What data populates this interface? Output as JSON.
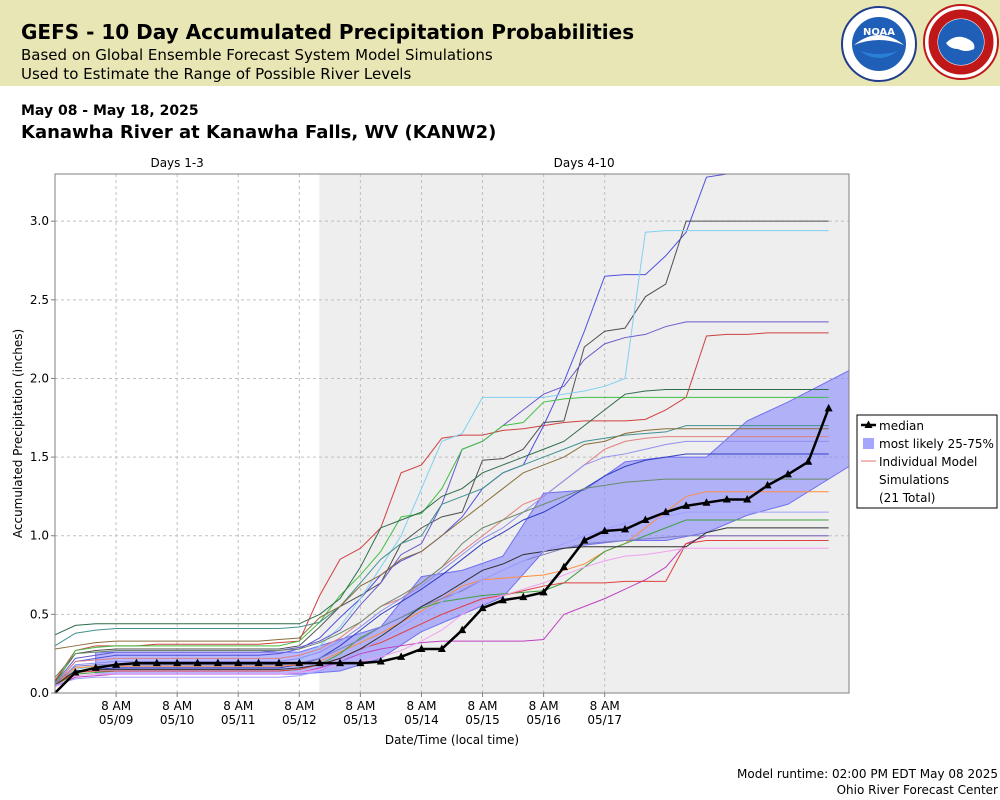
{
  "header": {
    "title": "GEFS - 10 Day Accumulated Precipitation Probabilities",
    "subtitle1": "Based on Global Ensemble Forecast System Model Simulations",
    "subtitle2": "Used to Estimate the Range of Possible River Levels",
    "noaa_logo_text": "NOAA",
    "nws_logo_text": "NATIONAL WEATHER SERVICE"
  },
  "date_range": "May 08 - May 18, 2025",
  "location": "Kanawha River at Kanawha Falls, WV (KANW2)",
  "footer": {
    "runtime": "Model runtime: 02:00 PM EDT May 08 2025",
    "center": "Ohio River Forecast Center"
  },
  "colors": {
    "banner": "#e8e6b4",
    "median": "#000000",
    "band": "#8080ff",
    "shaded_region": "#eeeeee"
  },
  "chart_data": {
    "type": "line",
    "xlabel": "Date/Time (local time)",
    "ylabel": "Accumulated Precipitation (inches)",
    "ylim": [
      0,
      3.3
    ],
    "xlim": [
      0,
      78
    ],
    "y_ticks": [
      "0.0",
      "0.5",
      "1.0",
      "1.5",
      "2.0",
      "2.5",
      "3.0"
    ],
    "x_ticks": [
      {
        "x": 6,
        "line1": "8 AM",
        "line2": "05/09"
      },
      {
        "x": 12,
        "line1": "8 AM",
        "line2": "05/10"
      },
      {
        "x": 18,
        "line1": "8 AM",
        "line2": "05/11"
      },
      {
        "x": 24,
        "line1": "8 AM",
        "line2": "05/12"
      },
      {
        "x": 30,
        "line1": "8 AM",
        "line2": "05/13"
      },
      {
        "x": 36,
        "line1": "8 AM",
        "line2": "05/14"
      },
      {
        "x": 42,
        "line1": "8 AM",
        "line2": "05/15"
      },
      {
        "x": 48,
        "line1": "8 AM",
        "line2": "05/16"
      },
      {
        "x": 54,
        "line1": "8 AM",
        "line2": "05/17"
      }
    ],
    "regions": [
      {
        "label": "Days 1-3",
        "start": 0,
        "end": 24
      },
      {
        "label": "Days 4-10",
        "start": 24,
        "end": 78
      }
    ],
    "grid": true,
    "legend": {
      "placement": "right",
      "median": "median",
      "band": "most likely 25-75%",
      "individual_line1": "Individual Model",
      "individual_line2": "Simulations",
      "individual_line3": "(21 Total)"
    },
    "median": {
      "name": "median",
      "x": [
        0,
        2,
        4,
        6,
        8,
        10,
        12,
        14,
        16,
        18,
        20,
        22,
        24,
        26,
        28,
        30,
        32,
        34,
        36,
        38,
        40,
        42,
        44,
        46,
        48,
        50,
        52,
        54,
        56,
        58,
        60,
        62,
        64,
        66,
        68,
        70,
        72,
        74,
        76
      ],
      "y": [
        0.0,
        0.13,
        0.16,
        0.18,
        0.19,
        0.19,
        0.19,
        0.19,
        0.19,
        0.19,
        0.19,
        0.19,
        0.19,
        0.19,
        0.19,
        0.19,
        0.2,
        0.23,
        0.28,
        0.28,
        0.4,
        0.54,
        0.59,
        0.61,
        0.64,
        0.8,
        0.97,
        1.03,
        1.04,
        1.1,
        1.15,
        1.19,
        1.21,
        1.23,
        1.23,
        1.32,
        1.39,
        1.47,
        1.81
      ]
    },
    "band_25_75": {
      "x": [
        4,
        10,
        20,
        24,
        28,
        32,
        36,
        40,
        44,
        48,
        52,
        56,
        60,
        64,
        68,
        72,
        78
      ],
      "upper": [
        0.26,
        0.26,
        0.26,
        0.26,
        0.34,
        0.42,
        0.74,
        0.78,
        0.87,
        1.27,
        1.29,
        1.47,
        1.5,
        1.5,
        1.73,
        1.85,
        2.05
      ],
      "lower": [
        0.12,
        0.12,
        0.12,
        0.12,
        0.14,
        0.22,
        0.39,
        0.5,
        0.61,
        0.9,
        0.94,
        0.97,
        0.97,
        1.02,
        1.13,
        1.2,
        1.44
      ]
    },
    "individual_series": [
      {
        "color": "#d04040",
        "y": [
          0.08,
          0.27,
          0.3,
          0.3,
          0.3,
          0.31,
          0.31,
          0.31,
          0.31,
          0.31,
          0.31,
          0.32,
          0.33,
          0.62,
          0.85,
          0.92,
          1.05,
          1.4,
          1.45,
          1.62,
          1.64,
          1.64,
          1.67,
          1.68,
          1.7,
          1.72,
          1.73,
          1.73,
          1.73,
          1.74,
          1.8,
          1.88,
          2.27,
          2.28,
          2.28,
          2.29,
          2.29,
          2.29,
          2.29
        ]
      },
      {
        "color": "#5050e0",
        "y": [
          0.05,
          0.2,
          0.22,
          0.24,
          0.24,
          0.24,
          0.24,
          0.24,
          0.24,
          0.24,
          0.24,
          0.25,
          0.28,
          0.35,
          0.48,
          0.6,
          0.75,
          0.84,
          0.9,
          1.0,
          1.12,
          1.3,
          1.4,
          1.45,
          1.7,
          1.98,
          2.3,
          2.65,
          2.66,
          2.66,
          2.78,
          2.93,
          3.28,
          3.3,
          3.3,
          3.3,
          3.3,
          3.3,
          3.3
        ]
      },
      {
        "color": "#505050",
        "y": [
          0.07,
          0.25,
          0.27,
          0.28,
          0.28,
          0.28,
          0.28,
          0.28,
          0.28,
          0.28,
          0.28,
          0.28,
          0.3,
          0.42,
          0.55,
          0.62,
          0.7,
          0.95,
          1.05,
          1.12,
          1.15,
          1.48,
          1.49,
          1.55,
          1.72,
          1.73,
          2.2,
          2.3,
          2.32,
          2.52,
          2.6,
          3.0,
          3.0,
          3.0,
          3.0,
          3.0,
          3.0,
          3.0,
          3.0
        ]
      },
      {
        "color": "#80d0f0",
        "y": [
          0.05,
          0.15,
          0.17,
          0.18,
          0.18,
          0.18,
          0.18,
          0.18,
          0.18,
          0.18,
          0.18,
          0.18,
          0.2,
          0.3,
          0.42,
          0.6,
          0.8,
          1.0,
          1.3,
          1.6,
          1.65,
          1.88,
          1.88,
          1.88,
          1.88,
          1.9,
          1.92,
          1.95,
          2.0,
          2.93,
          2.94,
          2.94,
          2.94,
          2.94,
          2.94,
          2.94,
          2.94,
          2.94,
          2.94
        ]
      },
      {
        "color": "#6a5acd",
        "y": [
          0.06,
          0.22,
          0.24,
          0.26,
          0.26,
          0.26,
          0.26,
          0.26,
          0.26,
          0.26,
          0.26,
          0.27,
          0.29,
          0.33,
          0.4,
          0.56,
          0.7,
          0.88,
          0.95,
          1.2,
          1.55,
          1.6,
          1.7,
          1.8,
          1.9,
          1.95,
          2.12,
          2.22,
          2.26,
          2.28,
          2.33,
          2.36,
          2.36,
          2.36,
          2.36,
          2.36,
          2.36,
          2.36,
          2.36
        ]
      },
      {
        "color": "#40c040",
        "y": [
          0.05,
          0.27,
          0.29,
          0.3,
          0.3,
          0.3,
          0.3,
          0.3,
          0.3,
          0.3,
          0.3,
          0.3,
          0.33,
          0.45,
          0.62,
          0.75,
          0.9,
          1.12,
          1.14,
          1.3,
          1.55,
          1.6,
          1.7,
          1.72,
          1.85,
          1.87,
          1.88,
          1.88,
          1.88,
          1.88,
          1.88,
          1.88,
          1.88,
          1.88,
          1.88,
          1.88,
          1.88,
          1.88,
          1.88
        ]
      },
      {
        "color": "#2e6b4a",
        "y": [
          0.37,
          0.43,
          0.44,
          0.44,
          0.44,
          0.44,
          0.44,
          0.44,
          0.44,
          0.44,
          0.44,
          0.44,
          0.44,
          0.5,
          0.6,
          0.8,
          1.05,
          1.1,
          1.15,
          1.25,
          1.3,
          1.4,
          1.45,
          1.5,
          1.55,
          1.6,
          1.7,
          1.8,
          1.9,
          1.92,
          1.93,
          1.93,
          1.93,
          1.93,
          1.93,
          1.93,
          1.93,
          1.93,
          1.93
        ]
      },
      {
        "color": "#409090",
        "y": [
          0.3,
          0.38,
          0.4,
          0.41,
          0.41,
          0.41,
          0.41,
          0.41,
          0.41,
          0.41,
          0.41,
          0.41,
          0.42,
          0.45,
          0.55,
          0.7,
          0.85,
          0.95,
          1.0,
          1.2,
          1.25,
          1.3,
          1.4,
          1.45,
          1.5,
          1.55,
          1.6,
          1.62,
          1.64,
          1.65,
          1.66,
          1.7,
          1.7,
          1.7,
          1.7,
          1.7,
          1.7,
          1.7,
          1.7
        ]
      },
      {
        "color": "#8a6d3b",
        "y": [
          0.28,
          0.3,
          0.32,
          0.33,
          0.33,
          0.33,
          0.33,
          0.33,
          0.33,
          0.33,
          0.33,
          0.34,
          0.35,
          0.48,
          0.55,
          0.68,
          0.75,
          0.85,
          0.9,
          1.0,
          1.1,
          1.2,
          1.3,
          1.4,
          1.45,
          1.5,
          1.58,
          1.6,
          1.65,
          1.67,
          1.68,
          1.68,
          1.68,
          1.68,
          1.68,
          1.68,
          1.68,
          1.68,
          1.68
        ]
      },
      {
        "color": "#e08080",
        "y": [
          0.05,
          0.2,
          0.21,
          0.22,
          0.22,
          0.22,
          0.22,
          0.22,
          0.22,
          0.22,
          0.22,
          0.22,
          0.24,
          0.28,
          0.35,
          0.45,
          0.55,
          0.6,
          0.7,
          0.8,
          0.9,
          1.0,
          1.1,
          1.2,
          1.25,
          1.35,
          1.45,
          1.55,
          1.6,
          1.62,
          1.63,
          1.63,
          1.63,
          1.63,
          1.63,
          1.63,
          1.63,
          1.63,
          1.63
        ]
      },
      {
        "color": "#9090f0",
        "y": [
          0.04,
          0.18,
          0.19,
          0.2,
          0.2,
          0.2,
          0.2,
          0.2,
          0.2,
          0.2,
          0.2,
          0.2,
          0.22,
          0.26,
          0.33,
          0.42,
          0.52,
          0.6,
          0.68,
          0.78,
          0.88,
          0.98,
          1.05,
          1.15,
          1.25,
          1.35,
          1.45,
          1.5,
          1.52,
          1.55,
          1.58,
          1.6,
          1.6,
          1.6,
          1.6,
          1.6,
          1.6,
          1.6,
          1.6
        ]
      },
      {
        "color": "#3040c0",
        "y": [
          0.06,
          0.14,
          0.15,
          0.16,
          0.16,
          0.16,
          0.16,
          0.16,
          0.16,
          0.16,
          0.16,
          0.16,
          0.18,
          0.22,
          0.3,
          0.4,
          0.5,
          0.58,
          0.66,
          0.75,
          0.85,
          0.95,
          1.02,
          1.1,
          1.15,
          1.22,
          1.3,
          1.38,
          1.44,
          1.48,
          1.5,
          1.52,
          1.52,
          1.52,
          1.52,
          1.52,
          1.52,
          1.52,
          1.52
        ]
      },
      {
        "color": "#6a8a6a",
        "y": [
          0.1,
          0.25,
          0.26,
          0.27,
          0.27,
          0.27,
          0.27,
          0.27,
          0.27,
          0.27,
          0.27,
          0.27,
          0.28,
          0.32,
          0.38,
          0.45,
          0.55,
          0.62,
          0.7,
          0.8,
          0.95,
          1.05,
          1.1,
          1.15,
          1.2,
          1.25,
          1.3,
          1.32,
          1.34,
          1.35,
          1.36,
          1.36,
          1.36,
          1.36,
          1.36,
          1.36,
          1.36,
          1.36,
          1.36
        ]
      },
      {
        "color": "#ff8c40",
        "y": [
          0.05,
          0.16,
          0.17,
          0.17,
          0.17,
          0.17,
          0.17,
          0.17,
          0.17,
          0.17,
          0.17,
          0.17,
          0.18,
          0.2,
          0.26,
          0.32,
          0.38,
          0.45,
          0.52,
          0.6,
          0.68,
          0.72,
          0.73,
          0.74,
          0.75,
          0.78,
          0.82,
          0.9,
          0.95,
          1.05,
          1.15,
          1.25,
          1.28,
          1.28,
          1.28,
          1.28,
          1.28,
          1.28,
          1.28
        ]
      },
      {
        "color": "#c040c0",
        "y": [
          0.04,
          0.1,
          0.11,
          0.12,
          0.12,
          0.12,
          0.12,
          0.12,
          0.12,
          0.12,
          0.12,
          0.12,
          0.13,
          0.16,
          0.2,
          0.25,
          0.28,
          0.3,
          0.32,
          0.33,
          0.33,
          0.33,
          0.33,
          0.33,
          0.34,
          0.5,
          0.55,
          0.6,
          0.66,
          0.72,
          0.8,
          0.95,
          1.0,
          1.0,
          1.0,
          1.0,
          1.0,
          1.0,
          1.0
        ]
      },
      {
        "color": "#40a040",
        "y": [
          0.05,
          0.12,
          0.13,
          0.14,
          0.14,
          0.14,
          0.14,
          0.14,
          0.14,
          0.14,
          0.14,
          0.14,
          0.15,
          0.18,
          0.25,
          0.35,
          0.42,
          0.48,
          0.54,
          0.58,
          0.6,
          0.62,
          0.63,
          0.64,
          0.65,
          0.7,
          0.8,
          0.9,
          0.95,
          1.0,
          1.05,
          1.1,
          1.1,
          1.1,
          1.1,
          1.1,
          1.1,
          1.1,
          1.1
        ]
      },
      {
        "color": "#e04040",
        "y": [
          0.05,
          0.13,
          0.14,
          0.14,
          0.14,
          0.14,
          0.14,
          0.14,
          0.14,
          0.14,
          0.14,
          0.14,
          0.15,
          0.18,
          0.22,
          0.28,
          0.32,
          0.38,
          0.44,
          0.5,
          0.55,
          0.6,
          0.62,
          0.65,
          0.68,
          0.7,
          0.7,
          0.7,
          0.71,
          0.71,
          0.71,
          0.95,
          0.97,
          0.97,
          0.97,
          0.97,
          0.97,
          0.97,
          0.97
        ]
      },
      {
        "color": "#f0a0f0",
        "y": [
          0.04,
          0.11,
          0.12,
          0.12,
          0.12,
          0.12,
          0.12,
          0.12,
          0.12,
          0.12,
          0.12,
          0.12,
          0.13,
          0.15,
          0.18,
          0.2,
          0.23,
          0.27,
          0.33,
          0.4,
          0.5,
          0.58,
          0.62,
          0.66,
          0.7,
          0.75,
          0.8,
          0.84,
          0.87,
          0.88,
          0.9,
          0.92,
          0.92,
          0.92,
          0.92,
          0.92,
          0.92,
          0.92,
          0.92
        ]
      },
      {
        "color": "#8080c0",
        "y": [
          0.06,
          0.17,
          0.18,
          0.18,
          0.18,
          0.18,
          0.18,
          0.18,
          0.18,
          0.18,
          0.18,
          0.18,
          0.19,
          0.22,
          0.28,
          0.34,
          0.42,
          0.48,
          0.55,
          0.6,
          0.65,
          0.72,
          0.78,
          0.84,
          0.88,
          0.92,
          0.95,
          0.96,
          0.97,
          0.98,
          0.99,
          1.0,
          1.0,
          1.0,
          1.0,
          1.0,
          1.0,
          1.0,
          1.0
        ]
      },
      {
        "color": "#303030",
        "y": [
          0.05,
          0.14,
          0.15,
          0.15,
          0.15,
          0.15,
          0.15,
          0.15,
          0.15,
          0.15,
          0.15,
          0.15,
          0.16,
          0.18,
          0.22,
          0.28,
          0.36,
          0.45,
          0.55,
          0.62,
          0.7,
          0.78,
          0.82,
          0.88,
          0.9,
          0.92,
          0.93,
          0.93,
          0.93,
          0.93,
          0.93,
          0.93,
          1.02,
          1.05,
          1.05,
          1.05,
          1.05,
          1.05,
          1.05
        ]
      },
      {
        "color": "#a0a0ff",
        "y": [
          0.05,
          0.09,
          0.1,
          0.1,
          0.1,
          0.1,
          0.1,
          0.1,
          0.1,
          0.1,
          0.1,
          0.1,
          0.11,
          0.14,
          0.2,
          0.27,
          0.34,
          0.42,
          0.5,
          0.58,
          0.66,
          0.72,
          0.78,
          0.84,
          0.9,
          0.95,
          1.0,
          1.04,
          1.08,
          1.1,
          1.12,
          1.15,
          1.15,
          1.15,
          1.15,
          1.15,
          1.15,
          1.15,
          1.15
        ]
      }
    ]
  }
}
